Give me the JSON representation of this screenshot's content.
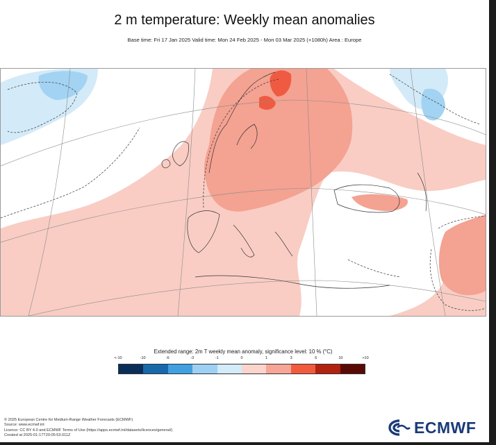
{
  "title": "2 m temperature: Weekly mean anomalies",
  "subtitle": "Base time: Fri 17 Jan 2025 Valid time: Mon 24 Feb 2025 - Mon 03 Mar 2025 (+1080h) Area : Europe",
  "legend": {
    "title": "Extended range: 2m T weekly mean anomaly, significance level: 10 % (°C)",
    "ticks": [
      "<-10",
      "-10",
      "-6",
      "-3",
      "-1",
      "0",
      "1",
      "3",
      "6",
      "10",
      ">10"
    ],
    "colors": [
      "#0b2e59",
      "#1769aa",
      "#41a0e0",
      "#9dd0f3",
      "#d4ebfa",
      "#ffffff",
      "#fbd5cd",
      "#f7a596",
      "#f25a3e",
      "#b1220f",
      "#5a0a05"
    ]
  },
  "credits": [
    "© 2025 European Centre for Medium-Range Weather Forecasts (ECMWF)",
    "Source: www.ecmwf.int",
    "Licence: CC BY 4.0 and ECMWF Terms of Use (https://apps.ecmwf.int/datasets/licences/general/)",
    "Created at 2025-01-17T20:05:53.011Z"
  ],
  "logo_text": "ECMWF",
  "map_colors": {
    "pale_red": "#f9cdc4",
    "med_red": "#f4a292",
    "strong_red": "#ef5b42",
    "pale_blue": "#d3eaf8",
    "med_blue": "#a3d3f2"
  }
}
